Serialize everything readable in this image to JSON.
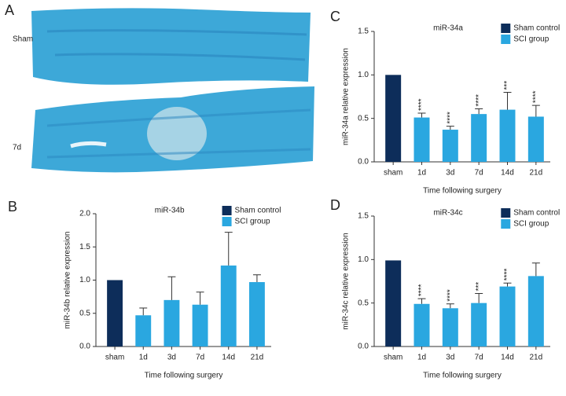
{
  "panel_a": {
    "label": "A",
    "rows": [
      "Sham",
      "7d"
    ]
  },
  "chart_data": [
    {
      "type": "bar",
      "panel_label": "B",
      "title": "miR-34b",
      "y_label": "miR-34b relative expression",
      "x_label": "Time following surgery",
      "categories": [
        "sham",
        "1d",
        "3d",
        "7d",
        "14d",
        "21d"
      ],
      "series": [
        {
          "name": "Sham control",
          "color": "#0d2d5a",
          "values": [
            1.0,
            null,
            null,
            null,
            null,
            null
          ],
          "errors": [
            null,
            null,
            null,
            null,
            null,
            null
          ]
        },
        {
          "name": "SCI group",
          "color": "#2aa7e0",
          "values": [
            null,
            0.47,
            0.7,
            0.63,
            1.22,
            0.97
          ],
          "errors": [
            null,
            0.11,
            0.35,
            0.19,
            0.5,
            0.11
          ]
        }
      ],
      "annotations": [
        null,
        null,
        null,
        null,
        null,
        null
      ],
      "ylim": [
        0,
        2
      ],
      "yticks": [
        {
          "value": 0,
          "label": "0.0"
        },
        0.5,
        {
          "value": 1,
          "label": "1.0"
        },
        1.5,
        {
          "value": 2,
          "label": "2.0"
        }
      ]
    },
    {
      "type": "bar",
      "panel_label": "C",
      "title": "miR-34a",
      "y_label": "miR-34a relative expression",
      "x_label": "Time following surgery",
      "categories": [
        "sham",
        "1d",
        "3d",
        "7d",
        "14d",
        "21d"
      ],
      "series": [
        {
          "name": "Sham control",
          "color": "#0d2d5a",
          "values": [
            1.0,
            null,
            null,
            null,
            null,
            null
          ],
          "errors": [
            null,
            null,
            null,
            null,
            null,
            null
          ]
        },
        {
          "name": "SCI group",
          "color": "#2aa7e0",
          "values": [
            null,
            0.51,
            0.37,
            0.55,
            0.6,
            0.52
          ],
          "errors": [
            null,
            0.05,
            0.04,
            0.06,
            0.2,
            0.13
          ]
        }
      ],
      "annotations": [
        null,
        "****",
        "****",
        "****",
        "***",
        "****"
      ],
      "ylim": [
        0,
        1.5
      ],
      "yticks": [
        {
          "value": 0,
          "label": "0.0"
        },
        0.5,
        {
          "value": 1,
          "label": "1.0"
        },
        1.5
      ]
    },
    {
      "type": "bar",
      "panel_label": "D",
      "title": "miR-34c",
      "y_label": "miR-34c relative expression",
      "x_label": "Time following surgery",
      "categories": [
        "sham",
        "1d",
        "3d",
        "7d",
        "14d",
        "21d"
      ],
      "series": [
        {
          "name": "Sham control",
          "color": "#0d2d5a",
          "values": [
            0.99,
            null,
            null,
            null,
            null,
            null
          ],
          "errors": [
            null,
            null,
            null,
            null,
            null,
            null
          ]
        },
        {
          "name": "SCI group",
          "color": "#2aa7e0",
          "values": [
            null,
            0.49,
            0.44,
            0.5,
            0.69,
            0.81
          ],
          "errors": [
            null,
            0.06,
            0.05,
            0.11,
            0.04,
            0.15
          ]
        }
      ],
      "annotations": [
        null,
        "****",
        "****",
        "***",
        "****",
        null
      ],
      "ylim": [
        0,
        1.5
      ],
      "yticks": [
        {
          "value": 0,
          "label": "0.0"
        },
        0.5,
        {
          "value": 1,
          "label": "1.0"
        },
        1.5
      ]
    }
  ]
}
